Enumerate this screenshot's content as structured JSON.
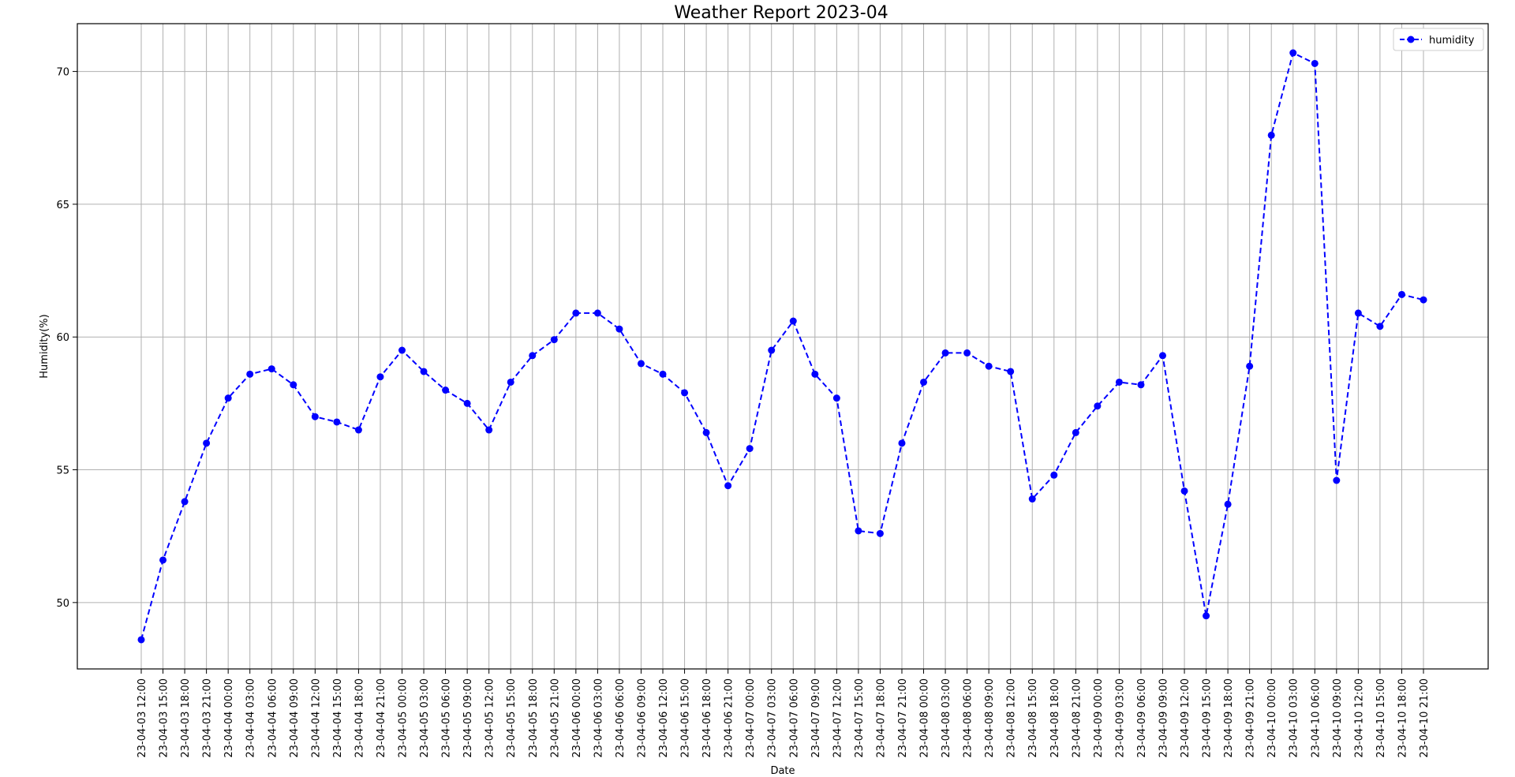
{
  "chart_data": {
    "type": "line",
    "title": "Weather Report 2023-04",
    "xlabel": "Date",
    "ylabel": "Humidity(%)",
    "ylim": [
      47.5,
      71.8
    ],
    "yticks": [
      50,
      55,
      60,
      65,
      70
    ],
    "grid": true,
    "legend_position": "top-right",
    "line_color": "#0000ff",
    "line_style": "dashed",
    "marker": "circle",
    "x": [
      "23-04-03 12:00",
      "23-04-03 15:00",
      "23-04-03 18:00",
      "23-04-03 21:00",
      "23-04-04 00:00",
      "23-04-04 03:00",
      "23-04-04 06:00",
      "23-04-04 09:00",
      "23-04-04 12:00",
      "23-04-04 15:00",
      "23-04-04 18:00",
      "23-04-04 21:00",
      "23-04-05 00:00",
      "23-04-05 03:00",
      "23-04-05 06:00",
      "23-04-05 09:00",
      "23-04-05 12:00",
      "23-04-05 15:00",
      "23-04-05 18:00",
      "23-04-05 21:00",
      "23-04-06 00:00",
      "23-04-06 03:00",
      "23-04-06 06:00",
      "23-04-06 09:00",
      "23-04-06 12:00",
      "23-04-06 15:00",
      "23-04-06 18:00",
      "23-04-06 21:00",
      "23-04-07 00:00",
      "23-04-07 03:00",
      "23-04-07 06:00",
      "23-04-07 09:00",
      "23-04-07 12:00",
      "23-04-07 15:00",
      "23-04-07 18:00",
      "23-04-07 21:00",
      "23-04-08 00:00",
      "23-04-08 03:00",
      "23-04-08 06:00",
      "23-04-08 09:00",
      "23-04-08 12:00",
      "23-04-08 15:00",
      "23-04-08 18:00",
      "23-04-08 21:00",
      "23-04-09 00:00",
      "23-04-09 03:00",
      "23-04-09 06:00",
      "23-04-09 09:00",
      "23-04-09 12:00",
      "23-04-09 15:00",
      "23-04-09 18:00",
      "23-04-09 21:00",
      "23-04-10 00:00",
      "23-04-10 03:00",
      "23-04-10 06:00",
      "23-04-10 09:00",
      "23-04-10 12:00",
      "23-04-10 15:00",
      "23-04-10 18:00",
      "23-04-10 21:00"
    ],
    "series": [
      {
        "name": "humidity",
        "values": [
          48.6,
          51.6,
          53.8,
          56.0,
          57.7,
          58.6,
          58.8,
          58.2,
          57.0,
          56.8,
          56.5,
          58.5,
          59.5,
          58.7,
          58.0,
          57.5,
          56.5,
          58.3,
          59.3,
          59.9,
          60.9,
          60.9,
          60.3,
          59.0,
          58.6,
          57.9,
          56.4,
          54.4,
          55.8,
          59.5,
          60.6,
          58.6,
          57.7,
          52.7,
          52.6,
          56.0,
          58.3,
          59.4,
          59.4,
          58.9,
          58.7,
          53.9,
          54.8,
          56.4,
          57.4,
          58.3,
          58.2,
          59.3,
          54.2,
          49.5,
          53.7,
          58.9,
          67.6,
          70.7,
          70.3,
          54.6,
          60.9,
          60.4,
          61.6,
          61.4
        ]
      }
    ]
  }
}
